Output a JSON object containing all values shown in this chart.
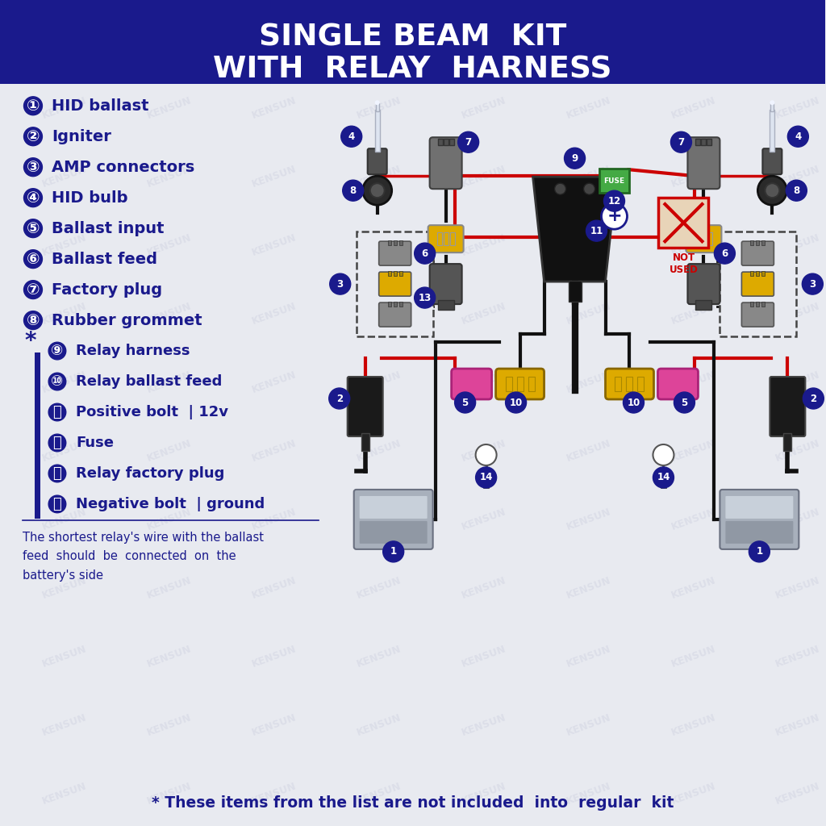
{
  "title_line1": "SINGLE BEAM  KIT",
  "title_line2": "WITH  RELAY  HARNESS",
  "title_bg_color": "#1a1a8c",
  "title_text_color": "#ffffff",
  "bg_color": "#e8eaf0",
  "legend_items": [
    {
      "num": "①",
      "text": "HID ballast"
    },
    {
      "num": "②",
      "text": "Igniter"
    },
    {
      "num": "③",
      "text": "AMP connectors"
    },
    {
      "num": "④",
      "text": "HID bulb"
    },
    {
      "num": "⑤",
      "text": "Ballast input"
    },
    {
      "num": "⑥",
      "text": "Ballast feed"
    },
    {
      "num": "⑦",
      "text": "Factory plug"
    },
    {
      "num": "⑧",
      "text": "Rubber grommet"
    }
  ],
  "legend_items_star": [
    {
      "num": "⑨",
      "text": "Relay harness"
    },
    {
      "num": "⑩",
      "text": "Relay ballast feed"
    },
    {
      "num": "⑪",
      "text": "Positive bolt  | 12v"
    },
    {
      "num": "⑫",
      "text": "Fuse"
    },
    {
      "num": "⑬",
      "text": "Relay factory plug"
    },
    {
      "num": "⑭",
      "text": "Negative bolt  | ground"
    }
  ],
  "footnote": "The shortest relay's wire with the ballast\nfeed  should  be  connected  on  the\nbattery's side",
  "bottom_note": "* These items from the list are not included  into  regular  kit",
  "dark_navy": "#1a1a8c",
  "red_color": "#cc0000",
  "black_color": "#111111",
  "gray_color": "#888888",
  "yellow_color": "#ddaa00",
  "pink_color": "#e060a0",
  "green_color": "#44aa44",
  "silver_color": "#aaaaaa"
}
